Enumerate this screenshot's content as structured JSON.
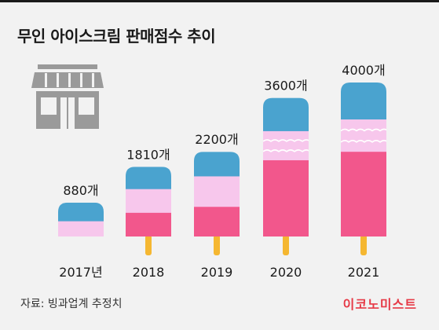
{
  "title": "무인 아이스크림 판매점수 추이",
  "source": "자료: 빙과업계 추정치",
  "brand": "이코노미스트",
  "colors": {
    "background": "#f2f2f2",
    "blue": "#4aa3cf",
    "pink_light": "#f7c7ec",
    "pink_hot": "#f2578c",
    "stick": "#f5b731",
    "icon_gray": "#9a9a9a",
    "brand_red": "#e63946"
  },
  "icons": {
    "store": "store-icon"
  },
  "chart_data": {
    "type": "bar",
    "categories": [
      "2017년",
      "2018",
      "2019",
      "2020",
      "2021"
    ],
    "values": [
      880,
      1810,
      2200,
      3600,
      4000
    ],
    "data_labels": [
      "880개",
      "1810개",
      "2200개",
      "3600개",
      "4000개"
    ],
    "ylim": [
      0,
      4000
    ],
    "grid": false,
    "legend": "none"
  }
}
